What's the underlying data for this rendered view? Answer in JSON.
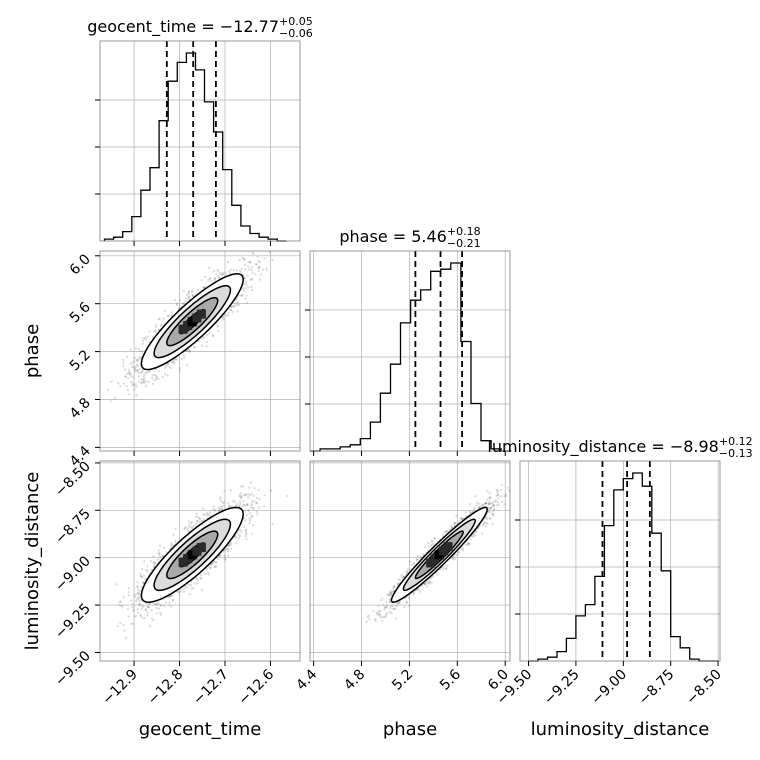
{
  "chart_data": {
    "type": "corner",
    "parameters": [
      {
        "name": "geocent_time",
        "axis_label": "geocent_time",
        "title_prefix": "geocent_time = −12.77",
        "title_sup": "+0.05",
        "title_sub": "−0.06",
        "range": [
          -12.975,
          -12.535
        ],
        "ticks": [
          -12.9,
          -12.8,
          -12.7,
          -12.6
        ],
        "tick_labels": [
          "−12.9",
          "−12.8",
          "−12.7",
          "−12.6"
        ],
        "quantiles": [
          -12.828,
          -12.77,
          -12.72
        ],
        "histogram": {
          "bin_width": 0.02,
          "bin_left_edges": [
            -12.965,
            -12.945,
            -12.925,
            -12.905,
            -12.885,
            -12.865,
            -12.845,
            -12.825,
            -12.805,
            -12.785,
            -12.765,
            -12.745,
            -12.725,
            -12.705,
            -12.685,
            -12.665,
            -12.645,
            -12.625,
            -12.605,
            -12.585
          ],
          "density": [
            0.01,
            0.02,
            0.05,
            0.13,
            0.27,
            0.39,
            0.64,
            0.85,
            0.95,
            1.0,
            0.91,
            0.74,
            0.58,
            0.38,
            0.19,
            0.08,
            0.04,
            0.02,
            0.01,
            0.0
          ]
        }
      },
      {
        "name": "phase",
        "axis_label": "phase",
        "title_prefix": "phase = 5.46",
        "title_sup": "+0.18",
        "title_sub": "−0.21",
        "range": [
          4.37,
          6.04
        ],
        "ticks": [
          4.4,
          4.8,
          5.2,
          5.6,
          6.0
        ],
        "tick_labels": [
          "4.4",
          "4.8",
          "5.2",
          "5.6",
          "6.0"
        ],
        "quantiles": [
          5.25,
          5.46,
          5.64
        ],
        "histogram": {
          "bin_width": 0.084,
          "bin_left_edges": [
            4.37,
            4.454,
            4.538,
            4.622,
            4.706,
            4.79,
            4.874,
            4.958,
            5.042,
            5.126,
            5.21,
            5.294,
            5.378,
            5.462,
            5.546,
            5.63,
            5.714,
            5.798,
            5.882,
            5.966
          ],
          "density": [
            0.0,
            0.01,
            0.01,
            0.02,
            0.03,
            0.06,
            0.14,
            0.28,
            0.42,
            0.62,
            0.73,
            0.78,
            0.87,
            0.88,
            0.91,
            0.53,
            0.23,
            0.05,
            0.01,
            0.0
          ]
        }
      },
      {
        "name": "luminosity_distance",
        "axis_label": "luminosity_distance",
        "title_prefix": "luminosity_distance = −8.98",
        "title_sup": "+0.12",
        "title_sub": "−0.13",
        "range": [
          -9.545,
          -8.49
        ],
        "ticks": [
          -9.5,
          -9.25,
          -9.0,
          -8.75,
          -8.5
        ],
        "tick_labels": [
          "−9.50",
          "−9.25",
          "−9.00",
          "−8.75",
          "−8.50"
        ],
        "quantiles": [
          -9.11,
          -8.98,
          -8.86
        ],
        "histogram": {
          "bin_width": 0.05,
          "bin_left_edges": [
            -9.5,
            -9.45,
            -9.4,
            -9.35,
            -9.3,
            -9.25,
            -9.2,
            -9.15,
            -9.1,
            -9.05,
            -9.0,
            -8.95,
            -8.9,
            -8.85,
            -8.8,
            -8.75,
            -8.7,
            -8.65,
            -8.6,
            -8.55
          ],
          "density": [
            0.0,
            0.01,
            0.02,
            0.05,
            0.12,
            0.24,
            0.3,
            0.45,
            0.72,
            0.91,
            0.97,
            1.0,
            0.93,
            0.68,
            0.48,
            0.13,
            0.07,
            0.01,
            0.0,
            0.0
          ]
        }
      }
    ],
    "correlations": {
      "geocent_time|phase": 0.88,
      "geocent_time|luminosity_distance": 0.86,
      "phase|luminosity_distance": 0.96
    },
    "means": [
      -12.772,
      5.45,
      -8.985
    ],
    "stds": [
      0.056,
      0.2,
      0.125
    ],
    "grid": true,
    "contour_levels_sigma": [
      0.5,
      1.0,
      1.5,
      2.0
    ],
    "colors": {
      "line": "#000000",
      "grid": "#b0b0b0",
      "axes_frame": "#808080",
      "scatter": "#555555",
      "contour_fills": [
        "#ffffff",
        "#dcdcdc",
        "#a9a9a9",
        "#6e6e6e",
        "#2a2a2a"
      ]
    }
  }
}
